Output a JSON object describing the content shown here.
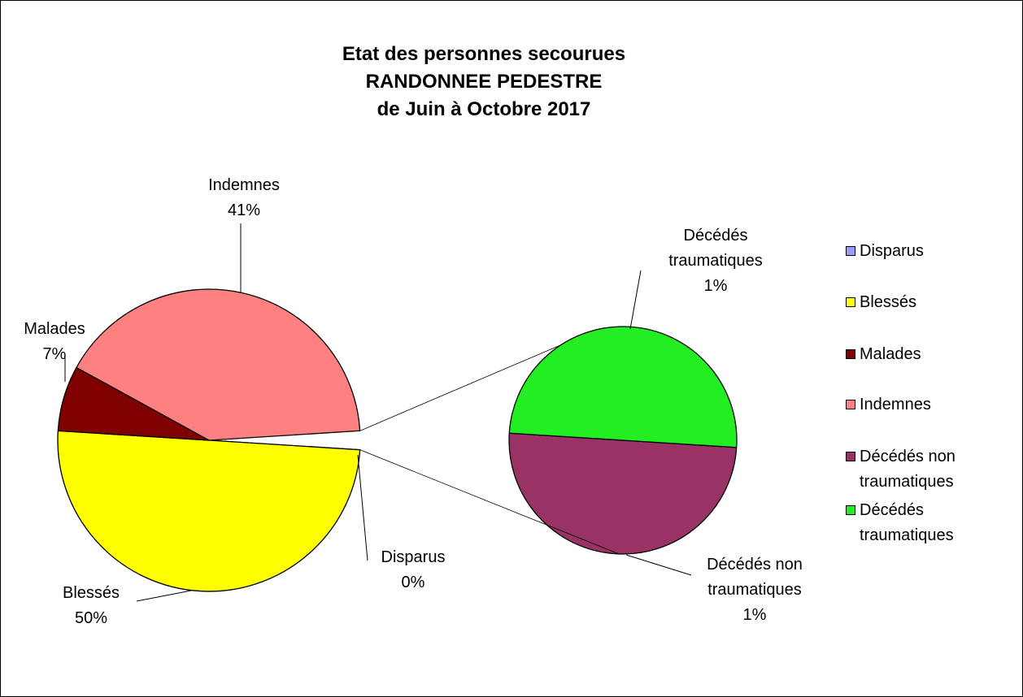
{
  "chart_data": {
    "type": "pie_of_pie",
    "title": [
      "Etat des personnes secourues",
      "RANDONNEE PEDESTRE",
      "de Juin à Octobre 2017"
    ],
    "categories": [
      "Disparus",
      "Blessés",
      "Malades",
      "Indemnes",
      "Décédés non traumatiques",
      "Décédés traumatiques"
    ],
    "values": [
      0,
      50,
      7,
      41,
      1,
      1
    ],
    "value_labels": [
      "0%",
      "50%",
      "7%",
      "41%",
      "1%",
      "1%"
    ],
    "colors": [
      "#9999ff",
      "#ffff00",
      "#800000",
      "#ff8080",
      "#993366",
      "#22ee22"
    ],
    "second_plot_count": 2,
    "legend": "right"
  }
}
